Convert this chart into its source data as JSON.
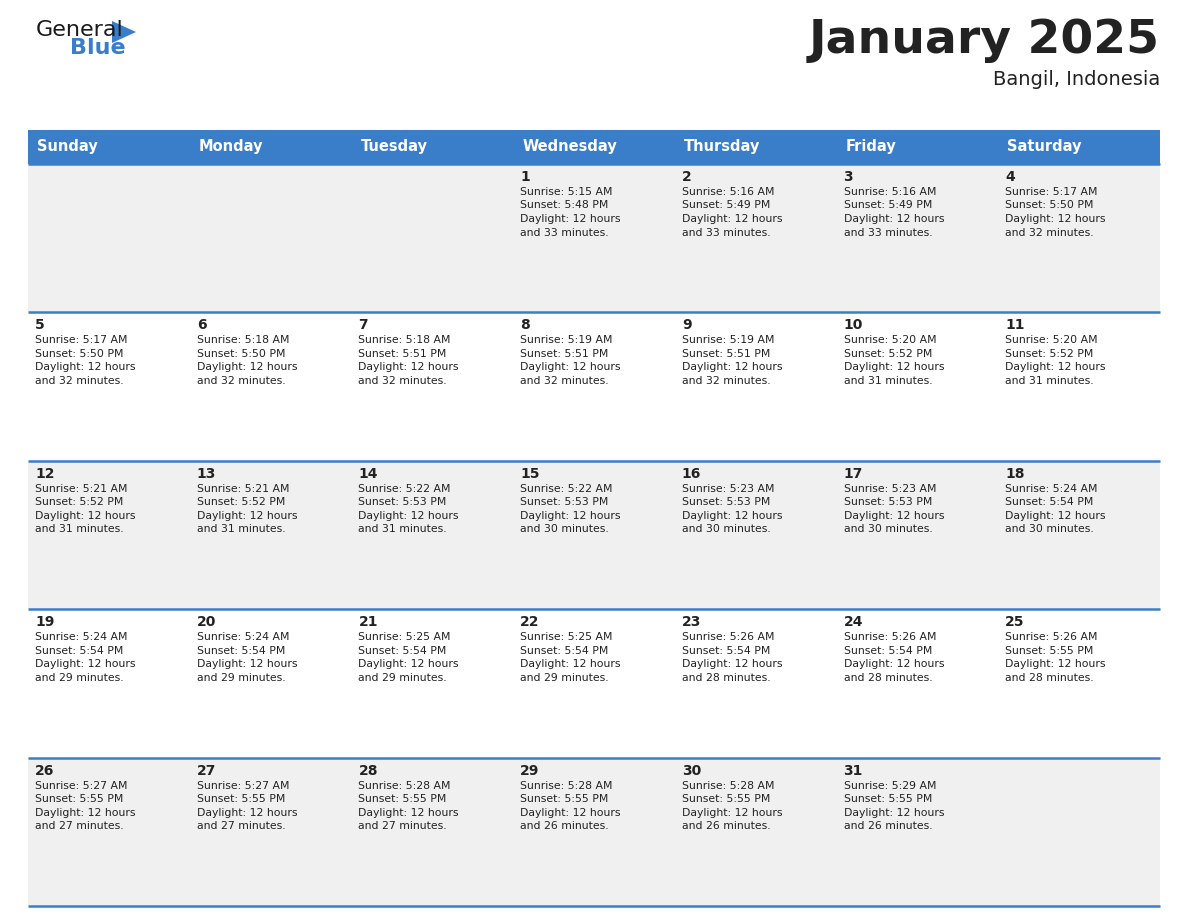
{
  "title": "January 2025",
  "subtitle": "Bangil, Indonesia",
  "header_bg_color": "#3A7DC9",
  "header_text_color": "#FFFFFF",
  "row_bg_even": "#F0F0F0",
  "row_bg_odd": "#FFFFFF",
  "border_color": "#3A7DC9",
  "text_color": "#222222",
  "days_of_week": [
    "Sunday",
    "Monday",
    "Tuesday",
    "Wednesday",
    "Thursday",
    "Friday",
    "Saturday"
  ],
  "calendar_data": [
    [
      {
        "day": "",
        "sunrise": "",
        "sunset": "",
        "daylight_h": "",
        "daylight_m": ""
      },
      {
        "day": "",
        "sunrise": "",
        "sunset": "",
        "daylight_h": "",
        "daylight_m": ""
      },
      {
        "day": "",
        "sunrise": "",
        "sunset": "",
        "daylight_h": "",
        "daylight_m": ""
      },
      {
        "day": "1",
        "sunrise": "5:15 AM",
        "sunset": "5:48 PM",
        "daylight_h": "12",
        "daylight_m": "33"
      },
      {
        "day": "2",
        "sunrise": "5:16 AM",
        "sunset": "5:49 PM",
        "daylight_h": "12",
        "daylight_m": "33"
      },
      {
        "day": "3",
        "sunrise": "5:16 AM",
        "sunset": "5:49 PM",
        "daylight_h": "12",
        "daylight_m": "33"
      },
      {
        "day": "4",
        "sunrise": "5:17 AM",
        "sunset": "5:50 PM",
        "daylight_h": "12",
        "daylight_m": "32"
      }
    ],
    [
      {
        "day": "5",
        "sunrise": "5:17 AM",
        "sunset": "5:50 PM",
        "daylight_h": "12",
        "daylight_m": "32"
      },
      {
        "day": "6",
        "sunrise": "5:18 AM",
        "sunset": "5:50 PM",
        "daylight_h": "12",
        "daylight_m": "32"
      },
      {
        "day": "7",
        "sunrise": "5:18 AM",
        "sunset": "5:51 PM",
        "daylight_h": "12",
        "daylight_m": "32"
      },
      {
        "day": "8",
        "sunrise": "5:19 AM",
        "sunset": "5:51 PM",
        "daylight_h": "12",
        "daylight_m": "32"
      },
      {
        "day": "9",
        "sunrise": "5:19 AM",
        "sunset": "5:51 PM",
        "daylight_h": "12",
        "daylight_m": "32"
      },
      {
        "day": "10",
        "sunrise": "5:20 AM",
        "sunset": "5:52 PM",
        "daylight_h": "12",
        "daylight_m": "31"
      },
      {
        "day": "11",
        "sunrise": "5:20 AM",
        "sunset": "5:52 PM",
        "daylight_h": "12",
        "daylight_m": "31"
      }
    ],
    [
      {
        "day": "12",
        "sunrise": "5:21 AM",
        "sunset": "5:52 PM",
        "daylight_h": "12",
        "daylight_m": "31"
      },
      {
        "day": "13",
        "sunrise": "5:21 AM",
        "sunset": "5:52 PM",
        "daylight_h": "12",
        "daylight_m": "31"
      },
      {
        "day": "14",
        "sunrise": "5:22 AM",
        "sunset": "5:53 PM",
        "daylight_h": "12",
        "daylight_m": "31"
      },
      {
        "day": "15",
        "sunrise": "5:22 AM",
        "sunset": "5:53 PM",
        "daylight_h": "12",
        "daylight_m": "30"
      },
      {
        "day": "16",
        "sunrise": "5:23 AM",
        "sunset": "5:53 PM",
        "daylight_h": "12",
        "daylight_m": "30"
      },
      {
        "day": "17",
        "sunrise": "5:23 AM",
        "sunset": "5:53 PM",
        "daylight_h": "12",
        "daylight_m": "30"
      },
      {
        "day": "18",
        "sunrise": "5:24 AM",
        "sunset": "5:54 PM",
        "daylight_h": "12",
        "daylight_m": "30"
      }
    ],
    [
      {
        "day": "19",
        "sunrise": "5:24 AM",
        "sunset": "5:54 PM",
        "daylight_h": "12",
        "daylight_m": "29"
      },
      {
        "day": "20",
        "sunrise": "5:24 AM",
        "sunset": "5:54 PM",
        "daylight_h": "12",
        "daylight_m": "29"
      },
      {
        "day": "21",
        "sunrise": "5:25 AM",
        "sunset": "5:54 PM",
        "daylight_h": "12",
        "daylight_m": "29"
      },
      {
        "day": "22",
        "sunrise": "5:25 AM",
        "sunset": "5:54 PM",
        "daylight_h": "12",
        "daylight_m": "29"
      },
      {
        "day": "23",
        "sunrise": "5:26 AM",
        "sunset": "5:54 PM",
        "daylight_h": "12",
        "daylight_m": "28"
      },
      {
        "day": "24",
        "sunrise": "5:26 AM",
        "sunset": "5:54 PM",
        "daylight_h": "12",
        "daylight_m": "28"
      },
      {
        "day": "25",
        "sunrise": "5:26 AM",
        "sunset": "5:55 PM",
        "daylight_h": "12",
        "daylight_m": "28"
      }
    ],
    [
      {
        "day": "26",
        "sunrise": "5:27 AM",
        "sunset": "5:55 PM",
        "daylight_h": "12",
        "daylight_m": "27"
      },
      {
        "day": "27",
        "sunrise": "5:27 AM",
        "sunset": "5:55 PM",
        "daylight_h": "12",
        "daylight_m": "27"
      },
      {
        "day": "28",
        "sunrise": "5:28 AM",
        "sunset": "5:55 PM",
        "daylight_h": "12",
        "daylight_m": "27"
      },
      {
        "day": "29",
        "sunrise": "5:28 AM",
        "sunset": "5:55 PM",
        "daylight_h": "12",
        "daylight_m": "26"
      },
      {
        "day": "30",
        "sunrise": "5:28 AM",
        "sunset": "5:55 PM",
        "daylight_h": "12",
        "daylight_m": "26"
      },
      {
        "day": "31",
        "sunrise": "5:29 AM",
        "sunset": "5:55 PM",
        "daylight_h": "12",
        "daylight_m": "26"
      },
      {
        "day": "",
        "sunrise": "",
        "sunset": "",
        "daylight_h": "",
        "daylight_m": ""
      }
    ]
  ],
  "logo_color_general": "#1a1a1a",
  "logo_color_blue": "#3A7DC9",
  "fig_width": 11.88,
  "fig_height": 9.18,
  "dpi": 100
}
